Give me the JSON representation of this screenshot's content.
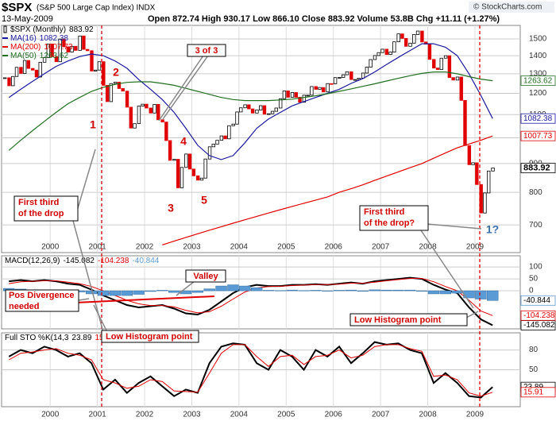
{
  "header": {
    "symbol": "$SPX",
    "name": "(S&P 500 Large Cap Index) INDX",
    "date": "13-May-2009",
    "quote": "Open 872.74 High 930.17 Low 866.10 Close 883.92 Volume 53.8B Chg +11.11 (+1.27%)",
    "credit": "© StockCharts.com"
  },
  "chart_data": [
    {
      "type": "candlestick",
      "log": true,
      "xlim": [
        1998.97,
        2009.96
      ],
      "xticks": [
        2000,
        2001,
        2002,
        2003,
        2004,
        2005,
        2006,
        2007,
        2008,
        2009
      ],
      "ylim": [
        625,
        1585
      ],
      "yticks": [
        700,
        800,
        900,
        1000,
        1100,
        1200,
        1300,
        1400,
        1500
      ],
      "grid": true,
      "x": [
        1999.125,
        1999.375,
        1999.625,
        1999.875,
        2000.125,
        2000.375,
        2000.625,
        2000.875,
        2001.125,
        2001.375,
        2001.625,
        2001.875,
        2002.125,
        2002.375,
        2002.625,
        2002.875,
        2003.125,
        2003.375,
        2003.625,
        2003.875,
        2004.125,
        2004.375,
        2004.625,
        2004.875,
        2005.125,
        2005.375,
        2005.625,
        2005.875,
        2006.125,
        2006.375,
        2006.625,
        2006.875,
        2007.125,
        2007.375,
        2007.625,
        2007.875,
        2008.125,
        2008.375,
        2008.625,
        2008.875,
        2009.125,
        2009.375
      ],
      "series": [
        {
          "name": "$SPX (Monthly)",
          "up_color": "#000000",
          "down_color": "#e00000",
          "box": true,
          "x": [
            1999.04,
            1999.13,
            1999.21,
            1999.29,
            1999.38,
            1999.46,
            1999.54,
            1999.63,
            1999.71,
            1999.79,
            1999.88,
            1999.96,
            2000.04,
            2000.13,
            2000.21,
            2000.29,
            2000.38,
            2000.46,
            2000.54,
            2000.63,
            2000.71,
            2000.79,
            2000.88,
            2000.96,
            2001.04,
            2001.13,
            2001.21,
            2001.29,
            2001.38,
            2001.46,
            2001.54,
            2001.63,
            2001.71,
            2001.79,
            2001.88,
            2001.96,
            2002.04,
            2002.13,
            2002.21,
            2002.29,
            2002.38,
            2002.46,
            2002.54,
            2002.63,
            2002.71,
            2002.79,
            2002.88,
            2002.96,
            2003.04,
            2003.13,
            2003.21,
            2003.29,
            2003.38,
            2003.46,
            2003.54,
            2003.63,
            2003.71,
            2003.79,
            2003.88,
            2003.96,
            2004.04,
            2004.13,
            2004.21,
            2004.29,
            2004.38,
            2004.46,
            2004.54,
            2004.63,
            2004.71,
            2004.79,
            2004.88,
            2004.96,
            2005.04,
            2005.13,
            2005.21,
            2005.29,
            2005.38,
            2005.46,
            2005.54,
            2005.63,
            2005.71,
            2005.79,
            2005.88,
            2005.96,
            2006.04,
            2006.13,
            2006.21,
            2006.29,
            2006.38,
            2006.46,
            2006.54,
            2006.63,
            2006.71,
            2006.79,
            2006.88,
            2006.96,
            2007.04,
            2007.13,
            2007.21,
            2007.29,
            2007.38,
            2007.46,
            2007.54,
            2007.63,
            2007.71,
            2007.79,
            2007.88,
            2007.96,
            2008.04,
            2008.13,
            2008.21,
            2008.29,
            2008.38,
            2008.46,
            2008.54,
            2008.63,
            2008.71,
            2008.79,
            2008.88,
            2008.96,
            2009.04,
            2009.13,
            2009.21,
            2009.29,
            2009.38
          ],
          "values": [
            1279,
            1238,
            1286,
            1335,
            1302,
            1373,
            1329,
            1320,
            1283,
            1363,
            1389,
            1469,
            1394,
            1366,
            1499,
            1452,
            1421,
            1455,
            1431,
            1518,
            1437,
            1429,
            1315,
            1320,
            1366,
            1240,
            1160,
            1249,
            1256,
            1224,
            1211,
            1134,
            1041,
            1060,
            1139,
            1148,
            1130,
            1107,
            1147,
            1077,
            1067,
            989,
            912,
            916,
            815,
            886,
            936,
            880,
            856,
            841,
            848,
            917,
            964,
            975,
            990,
            1008,
            996,
            1051,
            1058,
            1112,
            1131,
            1145,
            1126,
            1107,
            1121,
            1141,
            1102,
            1104,
            1115,
            1130,
            1174,
            1212,
            1181,
            1204,
            1181,
            1157,
            1191,
            1191,
            1234,
            1220,
            1229,
            1207,
            1249,
            1248,
            1280,
            1281,
            1295,
            1311,
            1270,
            1270,
            1277,
            1304,
            1336,
            1378,
            1401,
            1418,
            1438,
            1407,
            1421,
            1482,
            1531,
            1503,
            1455,
            1474,
            1527,
            1549,
            1481,
            1468,
            1379,
            1331,
            1323,
            1386,
            1400,
            1280,
            1267,
            1283,
            1166,
            969,
            896,
            903,
            826,
            735,
            798,
            873,
            883.92
          ]
        },
        {
          "name": "MA(16)",
          "color": "#1a1aa0",
          "box": true,
          "values": [
            1180,
            1220,
            1260,
            1300,
            1340,
            1370,
            1395,
            1410,
            1400,
            1370,
            1330,
            1270,
            1220,
            1170,
            1110,
            1040,
            970,
            930,
            915,
            930,
            980,
            1040,
            1080,
            1110,
            1140,
            1160,
            1180,
            1200,
            1220,
            1250,
            1275,
            1310,
            1350,
            1390,
            1430,
            1470,
            1470,
            1450,
            1400,
            1300,
            1190,
            1082.38
          ]
        },
        {
          "name": "MA(200)",
          "color": "#e00000",
          "box": true,
          "values": [
            null,
            null,
            null,
            null,
            null,
            null,
            null,
            null,
            null,
            null,
            null,
            null,
            null,
            645,
            655,
            665,
            675,
            685,
            695,
            705,
            715,
            725,
            735,
            745,
            755,
            765,
            775,
            785,
            800,
            812,
            825,
            840,
            855,
            870,
            885,
            900,
            920,
            940,
            960,
            975,
            990,
            1007.73
          ]
        },
        {
          "name": "MA(50)",
          "color": "#1f6f1f",
          "box": true,
          "values": [
            950,
            990,
            1030,
            1070,
            1110,
            1150,
            1180,
            1210,
            1230,
            1245,
            1255,
            1258,
            1258,
            1250,
            1240,
            1225,
            1210,
            1195,
            1180,
            1170,
            1165,
            1165,
            1165,
            1168,
            1172,
            1180,
            1188,
            1198,
            1210,
            1222,
            1235,
            1248,
            1262,
            1276,
            1290,
            1302,
            1310,
            1310,
            1300,
            1285,
            1272,
            1263.62
          ]
        }
      ],
      "annotations": [
        {
          "lines": [
            "1"
          ],
          "color": "#d00000"
        },
        {
          "lines": [
            "2"
          ],
          "color": "#d00000"
        },
        {
          "lines": [
            "3"
          ],
          "color": "#d00000"
        },
        {
          "lines": [
            "4"
          ],
          "color": "#d00000"
        },
        {
          "lines": [
            "5"
          ],
          "color": "#d00000"
        },
        {
          "lines": [
            "3 of 3"
          ],
          "color": "#d00000",
          "box": true
        },
        {
          "lines": [
            "First third",
            "of the drop"
          ],
          "color": "#d00000",
          "box": true
        },
        {
          "lines": [
            "First third",
            "of the drop?"
          ],
          "color": "#d00000",
          "box": true
        },
        {
          "lines": [
            "1?"
          ],
          "color": "#3a6fb0"
        }
      ]
    },
    {
      "type": "line",
      "label": "MACD(12,26,9)",
      "ylim": [
        -160,
        147
      ],
      "yticks": [
        100,
        50,
        0
      ],
      "grid": true,
      "x": [
        1999.125,
        1999.375,
        1999.625,
        1999.875,
        2000.125,
        2000.375,
        2000.625,
        2000.875,
        2001.125,
        2001.375,
        2001.625,
        2001.875,
        2002.125,
        2002.375,
        2002.625,
        2002.875,
        2003.125,
        2003.375,
        2003.625,
        2003.875,
        2004.125,
        2004.375,
        2004.625,
        2004.875,
        2005.125,
        2005.375,
        2005.625,
        2005.875,
        2006.125,
        2006.375,
        2006.625,
        2006.875,
        2007.125,
        2007.375,
        2007.625,
        2007.875,
        2008.125,
        2008.375,
        2008.625,
        2008.875,
        2009.125,
        2009.375
      ],
      "series": [
        {
          "color": "#000000",
          "width": 2,
          "box": true,
          "values": [
            40,
            45,
            40,
            45,
            40,
            30,
            25,
            5,
            -20,
            -40,
            -60,
            -70,
            -65,
            -60,
            -75,
            -95,
            -100,
            -80,
            -45,
            -10,
            15,
            25,
            20,
            20,
            25,
            25,
            28,
            25,
            30,
            35,
            30,
            40,
            45,
            50,
            55,
            50,
            25,
            5,
            -10,
            -70,
            -120,
            -145.082
          ]
        },
        {
          "color": "#e00000",
          "width": 1,
          "box": true,
          "values": [
            30,
            38,
            40,
            42,
            42,
            36,
            30,
            18,
            0,
            -20,
            -40,
            -55,
            -62,
            -62,
            -68,
            -82,
            -93,
            -88,
            -65,
            -35,
            -5,
            12,
            18,
            19,
            22,
            24,
            26,
            26,
            28,
            32,
            32,
            36,
            42,
            47,
            52,
            52,
            38,
            18,
            0,
            -40,
            -85,
            -104.238
          ]
        },
        {
          "style": "histogram",
          "color": "#5b9bd5",
          "box": true,
          "values": [
            10,
            7,
            0,
            3,
            -2,
            -6,
            -5,
            -13,
            -20,
            -20,
            -20,
            -15,
            -3,
            2,
            -7,
            -13,
            -7,
            8,
            20,
            25,
            20,
            13,
            2,
            1,
            3,
            1,
            2,
            -1,
            2,
            3,
            -2,
            4,
            3,
            3,
            3,
            -2,
            -13,
            -13,
            -10,
            -30,
            -35,
            -40.844
          ]
        }
      ],
      "annotations": [
        {
          "lines": [
            "Valley"
          ],
          "color": "#d00000",
          "box": true
        },
        {
          "lines": [
            "Pos Divergence",
            "needed"
          ],
          "color": "#d00000",
          "box": true
        },
        {
          "lines": [
            "Low Histogram point"
          ],
          "color": "#d00000",
          "box": true
        },
        {
          "lines": [
            "Low Histogram point"
          ],
          "color": "#d00000",
          "box": true
        }
      ]
    },
    {
      "type": "line",
      "label": "Full STO %K(14,3",
      "ylim": [
        -6,
        106
      ],
      "yticks": [
        80,
        50
      ],
      "grid": true,
      "x": [
        1999.125,
        1999.375,
        1999.625,
        1999.875,
        2000.125,
        2000.375,
        2000.625,
        2000.875,
        2001.125,
        2001.375,
        2001.625,
        2001.875,
        2002.125,
        2002.375,
        2002.625,
        2002.875,
        2003.125,
        2003.375,
        2003.625,
        2003.875,
        2004.125,
        2004.375,
        2004.625,
        2004.875,
        2005.125,
        2005.375,
        2005.625,
        2005.875,
        2006.125,
        2006.375,
        2006.625,
        2006.875,
        2007.125,
        2007.375,
        2007.625,
        2007.875,
        2008.125,
        2008.375,
        2008.625,
        2008.875,
        2009.125,
        2009.375
      ],
      "series": [
        {
          "color": "#000000",
          "width": 2,
          "box": true,
          "values": [
            70,
            80,
            75,
            85,
            80,
            70,
            75,
            60,
            20,
            35,
            15,
            30,
            40,
            25,
            10,
            20,
            15,
            60,
            85,
            90,
            88,
            60,
            50,
            80,
            70,
            50,
            80,
            70,
            85,
            60,
            75,
            92,
            88,
            90,
            80,
            75,
            30,
            45,
            30,
            10,
            8,
            23.89
          ]
        },
        {
          "color": "#e00000",
          "width": 1,
          "box": true,
          "values": [
            65,
            75,
            77,
            80,
            82,
            75,
            72,
            65,
            35,
            30,
            22,
            25,
            35,
            32,
            18,
            17,
            16,
            45,
            75,
            88,
            88,
            70,
            55,
            70,
            72,
            58,
            70,
            72,
            80,
            68,
            72,
            85,
            88,
            88,
            82,
            78,
            40,
            42,
            35,
            15,
            10,
            15.91
          ]
        }
      ]
    }
  ]
}
